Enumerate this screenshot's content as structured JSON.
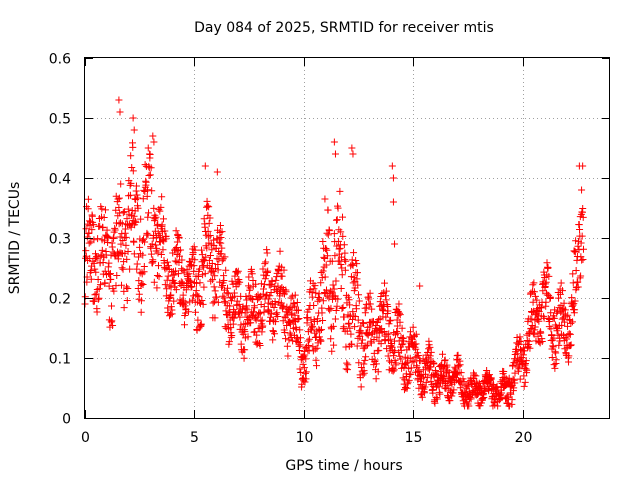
{
  "chart_data": {
    "type": "scatter",
    "title": "Day 084 of 2025, SRMTID for receiver mtis",
    "xlabel": "GPS time / hours",
    "ylabel": "SRMTID / TECUs",
    "xlim": [
      0,
      24
    ],
    "ylim": [
      0,
      0.6
    ],
    "x_ticks": [
      0,
      5,
      10,
      15,
      20
    ],
    "x_tick_labels": [
      "0",
      "5",
      "10",
      "15",
      "20"
    ],
    "y_ticks": [
      0,
      0.1,
      0.2,
      0.3,
      0.4,
      0.5,
      0.6
    ],
    "y_tick_labels": [
      "0",
      "0.1",
      "0.2",
      "0.3",
      "0.4",
      "0.5",
      "0.6"
    ],
    "grid": true,
    "marker": "plus",
    "color": "#ff0000",
    "series": [
      {
        "name": "SRMTID",
        "trend": {
          "x": [
            0,
            0.5,
            1.0,
            1.5,
            2.0,
            2.5,
            3.0,
            3.5,
            4.0,
            4.5,
            5.0,
            5.5,
            6.0,
            6.5,
            7.0,
            7.5,
            8.0,
            8.5,
            9.0,
            9.5,
            10.0,
            10.5,
            11.0,
            11.5,
            12.0,
            12.5,
            13.0,
            13.5,
            14.0,
            14.5,
            15.0,
            15.5,
            16.0,
            16.5,
            17.0,
            17.5,
            18.0,
            18.5,
            19.0,
            19.5,
            20.0,
            20.5,
            21.0,
            21.5,
            22.0,
            22.5,
            22.8
          ],
          "y": [
            0.26,
            0.28,
            0.25,
            0.27,
            0.33,
            0.3,
            0.34,
            0.27,
            0.24,
            0.23,
            0.21,
            0.26,
            0.27,
            0.19,
            0.18,
            0.17,
            0.19,
            0.21,
            0.2,
            0.16,
            0.1,
            0.17,
            0.24,
            0.26,
            0.21,
            0.16,
            0.13,
            0.15,
            0.14,
            0.11,
            0.1,
            0.08,
            0.07,
            0.06,
            0.07,
            0.04,
            0.05,
            0.05,
            0.04,
            0.06,
            0.1,
            0.16,
            0.19,
            0.16,
            0.15,
            0.23,
            0.35
          ]
        },
        "spread": {
          "x": [
            0,
            1,
            2,
            3,
            4,
            5,
            6,
            7,
            8,
            9,
            10,
            11,
            12,
            13,
            14,
            15,
            16,
            17,
            18,
            19,
            20,
            21,
            22,
            22.8
          ],
          "amp": [
            0.07,
            0.07,
            0.09,
            0.08,
            0.05,
            0.06,
            0.07,
            0.05,
            0.05,
            0.05,
            0.04,
            0.09,
            0.09,
            0.05,
            0.05,
            0.04,
            0.03,
            0.025,
            0.02,
            0.02,
            0.04,
            0.05,
            0.05,
            0.06
          ]
        },
        "peaks": [
          {
            "x": 1.55,
            "y": 0.53
          },
          {
            "x": 1.6,
            "y": 0.51
          },
          {
            "x": 2.2,
            "y": 0.5
          },
          {
            "x": 2.25,
            "y": 0.48
          },
          {
            "x": 3.1,
            "y": 0.47
          },
          {
            "x": 3.15,
            "y": 0.46
          },
          {
            "x": 5.5,
            "y": 0.42
          },
          {
            "x": 6.05,
            "y": 0.41
          },
          {
            "x": 11.4,
            "y": 0.46
          },
          {
            "x": 11.45,
            "y": 0.44
          },
          {
            "x": 12.2,
            "y": 0.45
          },
          {
            "x": 12.25,
            "y": 0.44
          },
          {
            "x": 14.05,
            "y": 0.42
          },
          {
            "x": 14.1,
            "y": 0.4
          },
          {
            "x": 14.1,
            "y": 0.36
          },
          {
            "x": 14.15,
            "y": 0.29
          },
          {
            "x": 15.3,
            "y": 0.22
          },
          {
            "x": 22.6,
            "y": 0.42
          },
          {
            "x": 22.75,
            "y": 0.42
          },
          {
            "x": 22.7,
            "y": 0.38
          }
        ],
        "sample_step_hours": 0.012
      }
    ]
  }
}
